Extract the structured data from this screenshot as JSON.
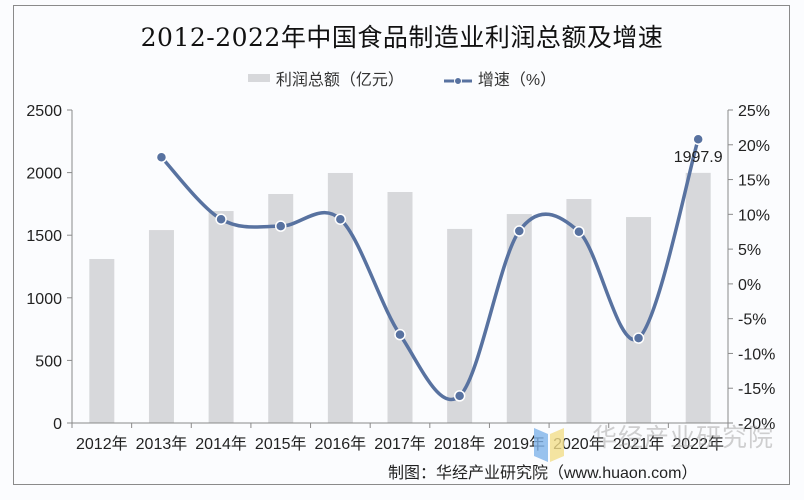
{
  "title": "2012-2022年中国食品制造业利润总额及增速",
  "legend": {
    "bar_label": "利润总额（亿元）",
    "line_label": "增速（%）"
  },
  "source": "制图：华经产业研究院（www.huaon.com）",
  "watermark": "华经产业研究院",
  "data_label": "1997.9",
  "colors": {
    "bar": "#d7d8db",
    "line": "#5872a0",
    "axis": "#8a8a8a",
    "text": "#222222"
  },
  "chart_data": {
    "type": "bar",
    "title": "2012-2022年中国食品制造业利润总额及增速",
    "categories": [
      "2012年",
      "2013年",
      "2014年",
      "2015年",
      "2016年",
      "2017年",
      "2018年",
      "2019年",
      "2020年",
      "2021年",
      "2022年"
    ],
    "series": [
      {
        "name": "利润总额（亿元）",
        "type": "bar",
        "axis": "left",
        "values": [
          1310,
          1541,
          1693,
          1829,
          1997,
          1845,
          1550,
          1669,
          1789,
          1645,
          1997.9
        ]
      },
      {
        "name": "增速（%）",
        "type": "line",
        "axis": "right",
        "smooth": true,
        "values": [
          null,
          18.2,
          9.3,
          8.3,
          9.3,
          -7.3,
          -16.1,
          7.6,
          7.5,
          -7.8,
          20.8
        ]
      }
    ],
    "left_axis": {
      "ylim": [
        0,
        2500
      ],
      "ticks": [
        "0",
        "500",
        "1000",
        "1500",
        "2000",
        "2500"
      ]
    },
    "right_axis": {
      "ylim": [
        -20,
        25
      ],
      "ticks": [
        "-20%",
        "-15%",
        "-10%",
        "-5%",
        "0%",
        "5%",
        "10%",
        "15%",
        "20%",
        "25%"
      ]
    },
    "annotations": [
      {
        "category": "2022年",
        "text": "1997.9"
      }
    ],
    "xlabel": "",
    "ylabel": "",
    "grid": false,
    "legend_position": "top"
  }
}
